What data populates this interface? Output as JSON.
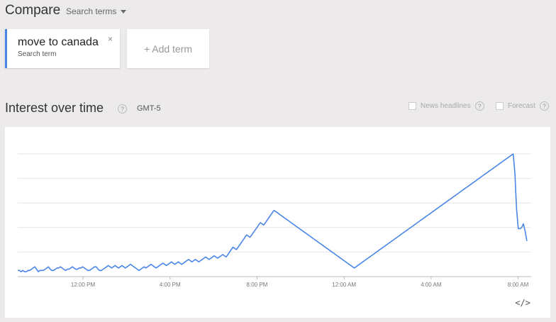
{
  "header": {
    "title": "Compare",
    "search_terms_label": "Search terms"
  },
  "terms": [
    {
      "name": "move to canada",
      "sublabel": "Search term",
      "color": "#4a86e8"
    }
  ],
  "add_term_label": "+ Add term",
  "interest": {
    "title": "Interest over time",
    "help": "?",
    "timezone": "GMT-5",
    "options": [
      {
        "label": "News headlines",
        "checked": false
      },
      {
        "label": "Forecast",
        "checked": false
      }
    ]
  },
  "chart_data": {
    "type": "line",
    "title": "",
    "xlabel": "",
    "ylabel": "",
    "ylim": [
      0,
      100
    ],
    "grid": true,
    "x_range_hours": [
      9,
      32.6
    ],
    "x_ticks": [
      {
        "hour": 12,
        "label": "12:00 PM"
      },
      {
        "hour": 16,
        "label": "4:00 PM"
      },
      {
        "hour": 20,
        "label": "8:00 PM"
      },
      {
        "hour": 24,
        "label": "12:00 AM"
      },
      {
        "hour": 28,
        "label": "4:00 AM"
      },
      {
        "hour": 32,
        "label": "8:00 AM"
      }
    ],
    "series": [
      {
        "name": "move to canada",
        "color": "#4a86e8",
        "values": [
          5,
          5,
          4,
          5,
          4,
          4,
          5,
          5,
          6,
          7,
          8,
          6,
          4,
          5,
          5,
          5,
          6,
          7,
          8,
          6,
          5,
          5,
          6,
          7,
          7,
          8,
          7,
          6,
          5,
          6,
          6,
          7,
          8,
          7,
          6,
          6,
          7,
          7,
          8,
          7,
          6,
          5,
          5,
          6,
          7,
          8,
          8,
          6,
          5,
          5,
          6,
          7,
          8,
          9,
          8,
          7,
          8,
          9,
          8,
          7,
          8,
          9,
          8,
          7,
          8,
          9,
          10,
          9,
          8,
          7,
          6,
          5,
          6,
          7,
          8,
          7,
          8,
          9,
          10,
          9,
          8,
          7,
          8,
          9,
          10,
          11,
          10,
          9,
          10,
          11,
          12,
          11,
          10,
          11,
          12,
          11,
          10,
          11,
          12,
          13,
          14,
          13,
          12,
          13,
          14,
          13,
          12,
          13,
          14,
          15,
          16,
          15,
          14,
          15,
          16,
          17,
          16,
          15,
          16,
          17,
          18,
          17,
          16,
          18,
          20,
          22,
          24,
          23,
          22,
          24,
          26,
          28,
          30,
          32,
          34,
          33,
          32,
          34,
          36,
          38,
          40,
          42,
          44,
          43,
          42,
          44,
          46,
          48,
          50,
          52,
          54,
          53,
          52,
          51,
          50,
          49,
          48,
          47,
          46,
          45,
          44,
          43,
          42,
          41,
          40,
          39,
          38,
          37,
          36,
          35,
          34,
          33,
          32,
          31,
          30,
          29,
          28,
          27,
          26,
          25,
          24,
          23,
          22,
          21,
          20,
          19,
          18,
          17,
          16,
          15,
          14,
          13,
          12,
          11,
          10,
          9,
          8,
          7,
          8,
          9,
          10,
          11,
          12,
          13,
          14,
          15,
          16,
          17,
          18,
          19,
          20,
          21,
          22,
          23,
          24,
          25,
          26,
          27,
          28,
          29,
          30,
          31,
          32,
          33,
          34,
          35,
          36,
          37,
          38,
          39,
          40,
          41,
          42,
          43,
          44,
          45,
          46,
          47,
          48,
          49,
          50,
          51,
          52,
          53,
          54,
          55,
          56,
          57,
          58,
          59,
          60,
          61,
          62,
          63,
          64,
          65,
          66,
          67,
          68,
          69,
          70,
          71,
          72,
          73,
          74,
          75,
          76,
          77,
          78,
          79,
          80,
          81,
          82,
          83,
          84,
          85,
          86,
          87,
          88,
          89,
          90,
          91,
          92,
          93,
          94,
          95,
          96,
          97,
          98,
          99,
          100,
          85,
          55,
          39,
          39,
          40,
          43,
          37,
          29
        ]
      }
    ]
  }
}
